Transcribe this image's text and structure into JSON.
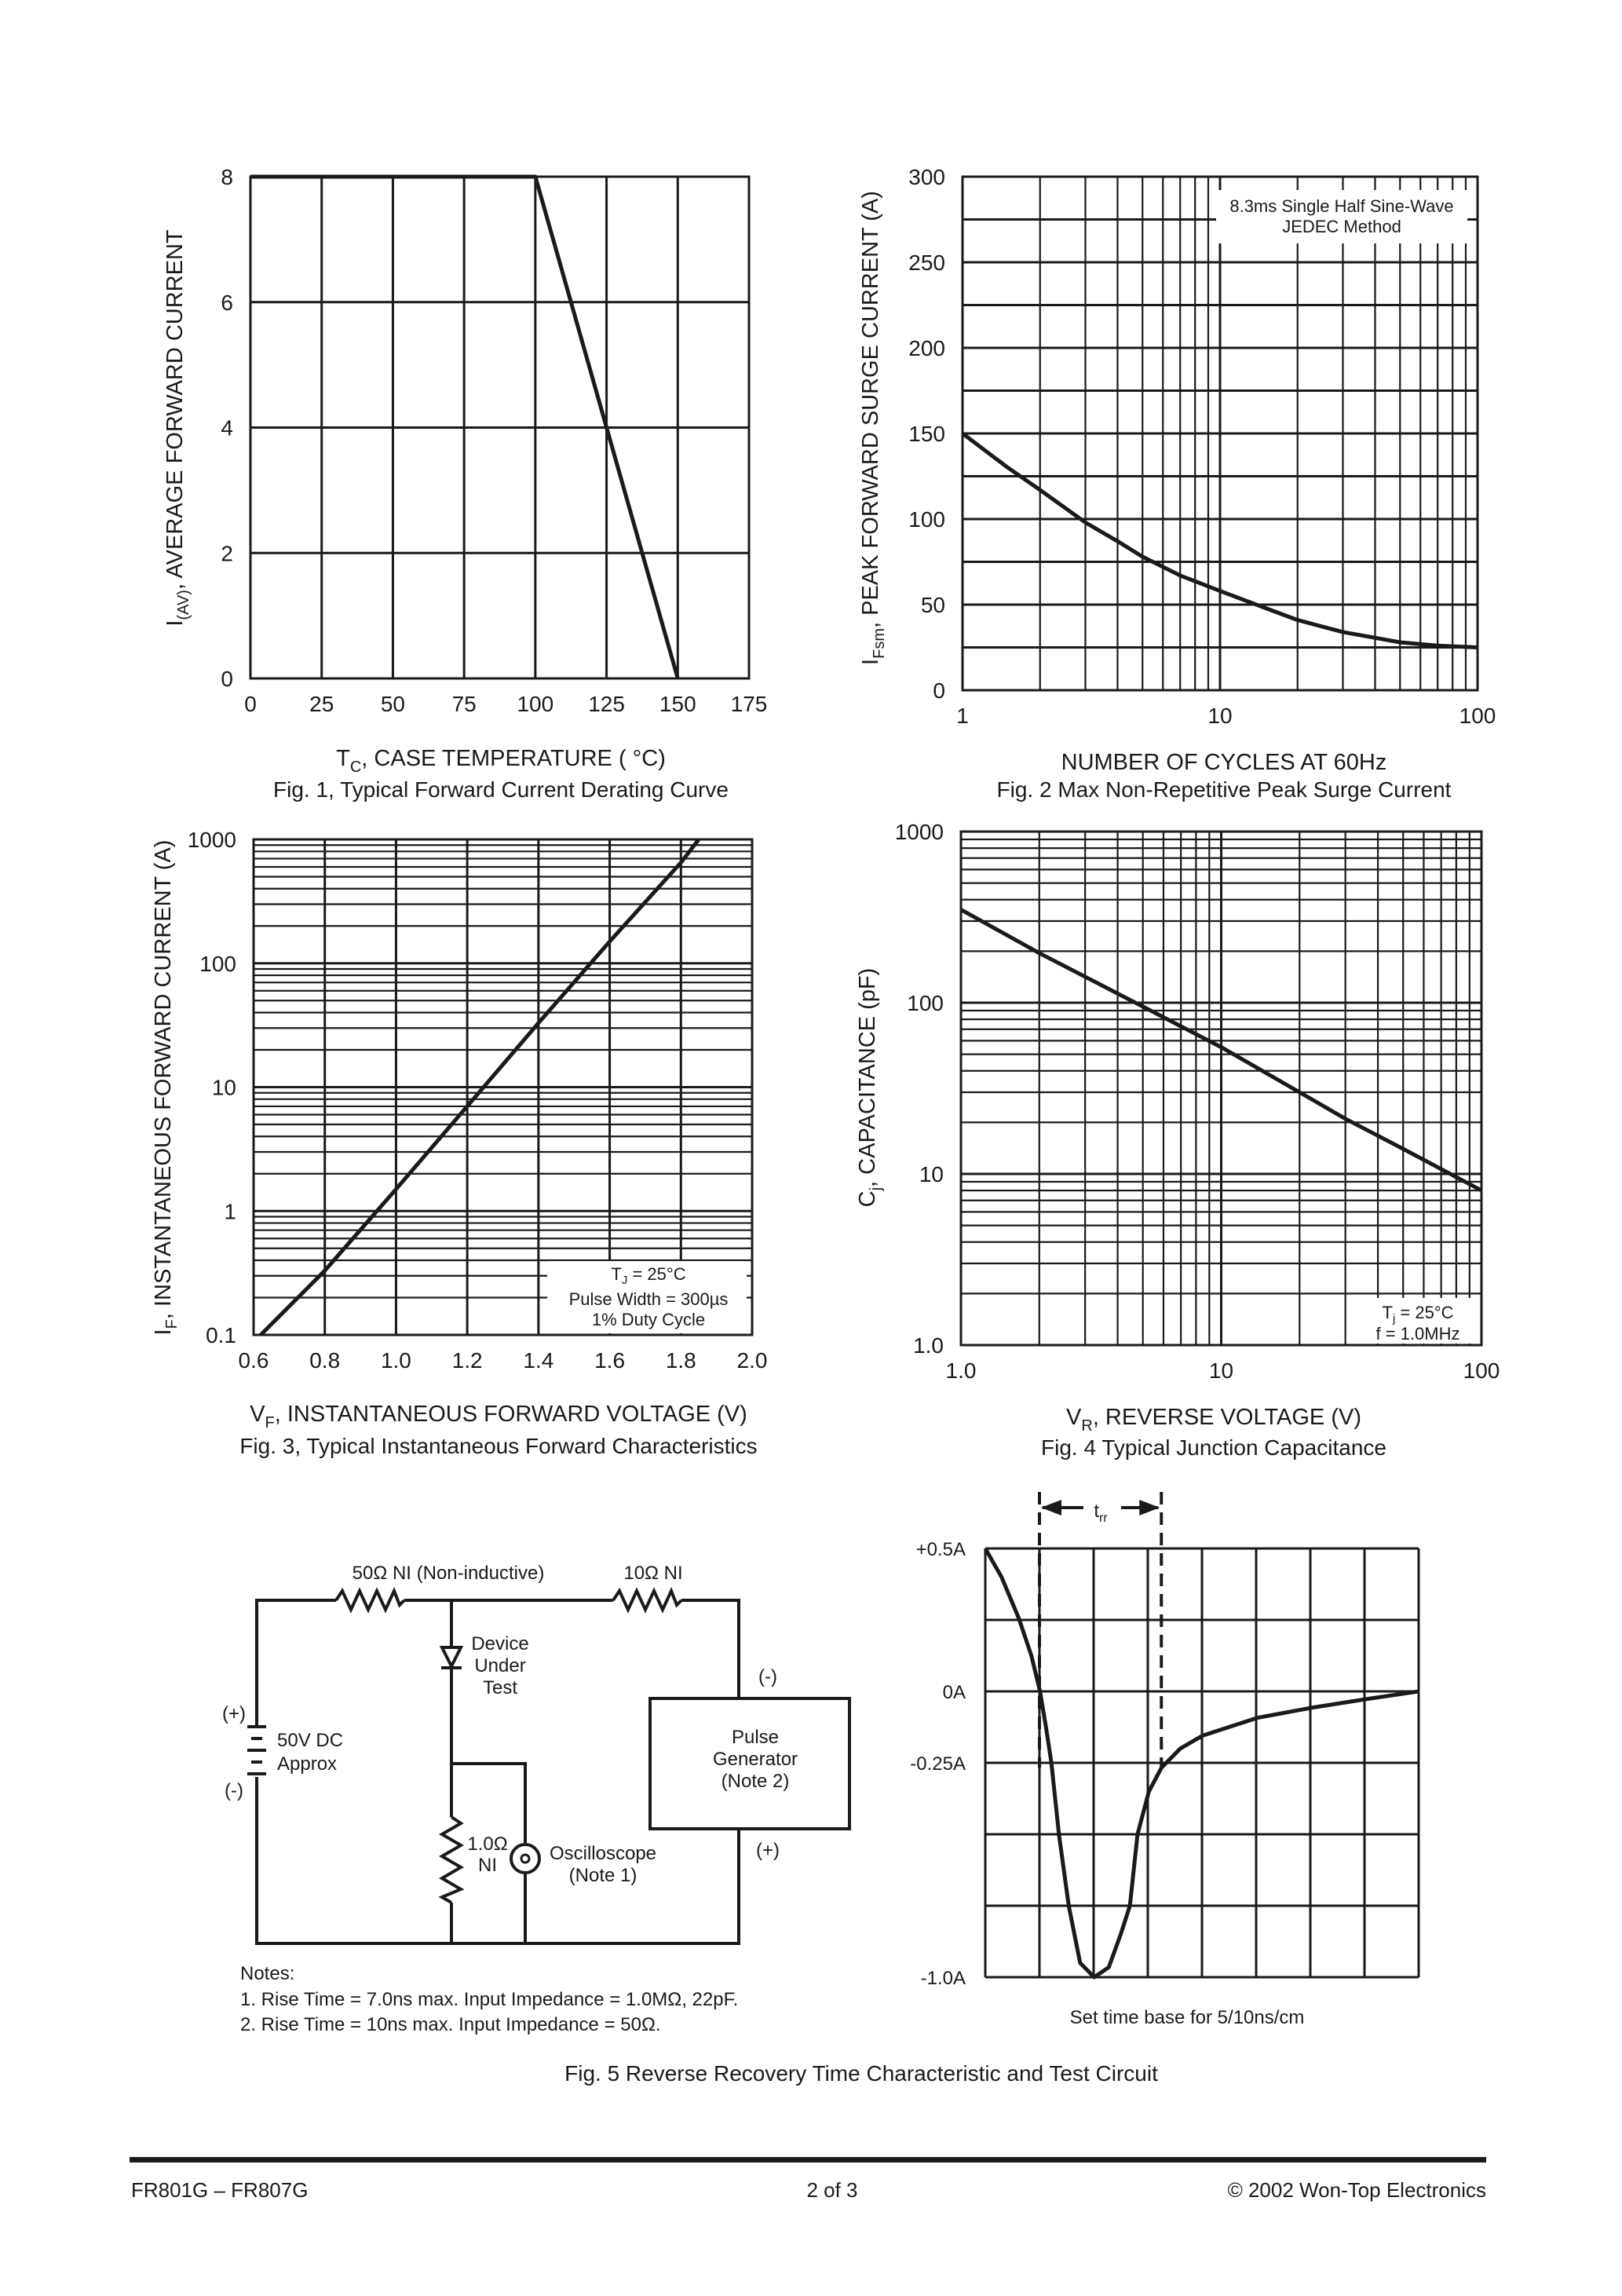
{
  "footer": {
    "part_numbers": "FR801G – FR807G",
    "page": "2  of  3",
    "copyright": "© 2002 Won-Top Electronics"
  },
  "chart_data": [
    {
      "type": "line",
      "title": "Fig. 1,  Typical Forward Current Derating Curve",
      "xlabel": {
        "main": "T",
        "sub": "C",
        "rest": ", CASE TEMPERATURE     ( °C)"
      },
      "ylabel": {
        "main": "I",
        "sub": "(AV)",
        "rest": ", AVERAGE FORWARD CURRENT"
      },
      "xscale": "linear",
      "yscale": "linear",
      "xlim": [
        0,
        175
      ],
      "ylim": [
        0,
        8
      ],
      "xticks": [
        0,
        25,
        50,
        75,
        100,
        125,
        150,
        175
      ],
      "xtick_labels": [
        "0",
        "25",
        "50",
        "75",
        "100",
        "125",
        "150",
        "175"
      ],
      "yticks": [
        0,
        2,
        4,
        6,
        8
      ],
      "ytick_labels": [
        "0",
        "2",
        "4",
        "6",
        "8"
      ],
      "grid": true,
      "series": [
        {
          "x": [
            0,
            100,
            150
          ],
          "y": [
            8,
            8,
            0
          ]
        }
      ]
    },
    {
      "type": "line",
      "title": "Fig. 2  Max Non-Repetitive Peak Surge Current",
      "xlabel": {
        "main": "NUMBER OF CYCLES AT 60Hz",
        "sub": "",
        "rest": ""
      },
      "ylabel": {
        "main": "I",
        "sub": "Fsm",
        "rest": ", PEAK FORWARD SURGE CURRENT (A)"
      },
      "xscale": "log",
      "yscale": "linear",
      "xlim": [
        1,
        100
      ],
      "ylim": [
        0,
        300
      ],
      "xticks": [
        1,
        10,
        100
      ],
      "xtick_labels": [
        "1",
        "10",
        "100"
      ],
      "yticks": [
        0,
        50,
        100,
        150,
        200,
        250,
        300
      ],
      "ytick_labels": [
        "0",
        "50",
        "100",
        "150",
        "200",
        "250",
        "300"
      ],
      "grid": true,
      "legend": [
        "8.3ms Single Half Sine-Wave",
        "JEDEC Method"
      ],
      "legend_placement": "top-right",
      "series": [
        {
          "x": [
            1,
            1.5,
            2,
            3,
            4,
            5,
            7,
            10,
            15,
            20,
            30,
            50,
            70,
            100
          ],
          "y": [
            150,
            130,
            117,
            98,
            87,
            78,
            67,
            58,
            48,
            41,
            34,
            28,
            26,
            25
          ]
        }
      ]
    },
    {
      "type": "line",
      "title": "Fig. 3,  Typical Instantaneous Forward Characteristics",
      "xlabel": {
        "main": "V",
        "sub": "F",
        "rest": ", INSTANTANEOUS FORWARD VOLTAGE (V)"
      },
      "ylabel": {
        "main": "I",
        "sub": "F",
        "rest": ", INSTANTANEOUS FORWARD CURRENT (A)"
      },
      "xscale": "linear",
      "yscale": "log",
      "xlim": [
        0.6,
        2.0
      ],
      "ylim": [
        0.1,
        1000
      ],
      "xticks": [
        0.6,
        0.8,
        1.0,
        1.2,
        1.4,
        1.6,
        1.8,
        2.0
      ],
      "xtick_labels": [
        "0.6",
        "0.8",
        "1.0",
        "1.2",
        "1.4",
        "1.6",
        "1.8",
        "2.0"
      ],
      "yticks": [
        0.1,
        1,
        10,
        100,
        1000
      ],
      "ytick_labels": [
        "0.1",
        "1",
        "10",
        "100",
        "1000"
      ],
      "grid": true,
      "legend": [
        {
          "main": "T",
          "sub": "J",
          "rest": " = 25°C"
        },
        "Pulse Width = 300µs",
        "1% Duty Cycle"
      ],
      "legend_placement": "bottom-right",
      "series": [
        {
          "x": [
            0.62,
            0.8,
            1.0,
            1.2,
            1.4,
            1.6,
            1.8,
            1.85
          ],
          "y": [
            0.1,
            0.33,
            1.5,
            7,
            33,
            150,
            650,
            1000
          ]
        }
      ]
    },
    {
      "type": "line",
      "title": "Fig. 4  Typical Junction Capacitance",
      "xlabel": {
        "main": "V",
        "sub": "R",
        "rest": ", REVERSE VOLTAGE (V)"
      },
      "ylabel": {
        "main": "C",
        "sub": "j",
        "rest": ", CAPACITANCE (pF)"
      },
      "xscale": "log",
      "yscale": "log",
      "xlim": [
        1,
        100
      ],
      "ylim": [
        1,
        1000
      ],
      "xticks": [
        1,
        10,
        100
      ],
      "xtick_labels": [
        "1.0",
        "10",
        "100"
      ],
      "yticks": [
        1,
        10,
        100,
        1000
      ],
      "ytick_labels": [
        "1.0",
        "10",
        "100",
        "1000"
      ],
      "grid": true,
      "legend": [
        {
          "main": "T",
          "sub": "j",
          "rest": " = 25°C"
        },
        "f = 1.0MHz"
      ],
      "legend_placement": "bottom-right",
      "series": [
        {
          "x": [
            1,
            2,
            5,
            10,
            20,
            30,
            50,
            100
          ],
          "y": [
            350,
            195,
            95,
            55,
            30,
            21,
            14,
            8
          ]
        }
      ]
    }
  ],
  "figure5": {
    "caption": "Fig. 5  Reverse Recovery Time Characteristic and Test Circuit",
    "waveform": {
      "y_labels": [
        "+0.5A",
        "0A",
        "-0.25A",
        "-1.0A"
      ],
      "trr_label": {
        "main": "t",
        "sub": "rr"
      },
      "time_base_note": "Set time base for 5/10ns/cm"
    },
    "circuit": {
      "r50_label": "50Ω NI (Non-inductive)",
      "r10_label": "10Ω NI",
      "dut_label": [
        "Device",
        "Under",
        "Test"
      ],
      "battery_plus": "(+)",
      "battery_minus": "(-)",
      "battery_label": [
        "50V DC",
        "Approx"
      ],
      "r1_label": [
        "1.0Ω",
        "NI"
      ],
      "scope_label": [
        "Oscilloscope",
        "(Note 1)"
      ],
      "pulse_gen_label": [
        "Pulse",
        "Generator",
        "(Note 2)"
      ],
      "pulse_minus": "(-)",
      "pulse_plus": "(+)"
    },
    "notes": {
      "heading": "Notes:",
      "items": [
        "1. Rise Time = 7.0ns max. Input Impedance = 1.0MΩ, 22pF.",
        "2. Rise Time = 10ns max. Input Impedance = 50Ω."
      ]
    }
  }
}
